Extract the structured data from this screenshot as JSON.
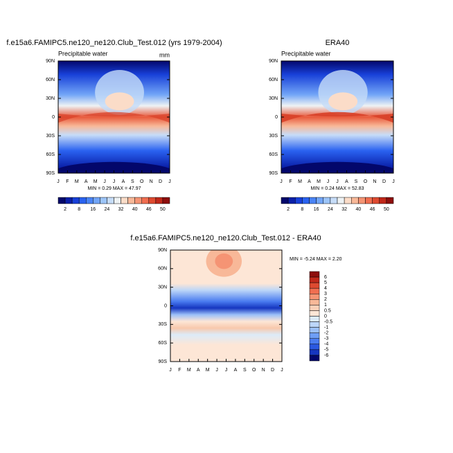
{
  "chart_data": [
    {
      "type": "contour",
      "title": "f.e15a6.FAMIPC5.ne120_ne120.Club_Test.012 (yrs 1979-2004)",
      "subtitle": "Precipitable water",
      "units": "mm",
      "categories": [
        "J",
        "F",
        "M",
        "A",
        "M",
        "J",
        "J",
        "A",
        "S",
        "O",
        "N",
        "D",
        "J"
      ],
      "ylim": [
        -90,
        90
      ],
      "yticks": [
        {
          "value": 90,
          "label": "90N"
        },
        {
          "value": 60,
          "label": "60N"
        },
        {
          "value": 30,
          "label": "30N"
        },
        0,
        {
          "value": -30,
          "label": "30S"
        },
        {
          "value": -60,
          "label": "60S"
        },
        {
          "value": -90,
          "label": "90S"
        }
      ],
      "stats": "MIN =  0.29 MAX =  47.97",
      "colorbar": {
        "orientation": "horizontal",
        "labels": [
          2,
          8,
          16,
          24,
          32,
          40,
          46,
          50
        ],
        "colors": [
          "#03076b",
          "#0a1fa8",
          "#1840d8",
          "#2a62f0",
          "#4a84f5",
          "#72a5f7",
          "#9cc4f8",
          "#c6dcf8",
          "#eef2f4",
          "#fbdcc8",
          "#f8b898",
          "#f59474",
          "#f06e50",
          "#de4a30",
          "#c0281a",
          "#8e0e0c"
        ]
      }
    },
    {
      "type": "contour",
      "title": "ERA40",
      "subtitle": "Precipitable water",
      "categories": [
        "J",
        "F",
        "M",
        "A",
        "M",
        "J",
        "J",
        "A",
        "S",
        "O",
        "N",
        "D",
        "J"
      ],
      "ylim": [
        -90,
        90
      ],
      "yticks": [
        {
          "value": 90,
          "label": "90N"
        },
        {
          "value": 60,
          "label": "60N"
        },
        {
          "value": 30,
          "label": "30N"
        },
        0,
        {
          "value": -30,
          "label": "30S"
        },
        {
          "value": -60,
          "label": "60S"
        },
        {
          "value": -90,
          "label": "90S"
        }
      ],
      "stats": "MIN =  0.24 MAX =  52.83",
      "colorbar": {
        "orientation": "horizontal",
        "labels": [
          2,
          8,
          16,
          24,
          32,
          40,
          46,
          50
        ],
        "colors": [
          "#03076b",
          "#0a1fa8",
          "#1840d8",
          "#2a62f0",
          "#4a84f5",
          "#72a5f7",
          "#9cc4f8",
          "#c6dcf8",
          "#eef2f4",
          "#fbdcc8",
          "#f8b898",
          "#f59474",
          "#f06e50",
          "#de4a30",
          "#c0281a",
          "#8e0e0c"
        ]
      }
    },
    {
      "type": "contour",
      "title": "f.e15a6.FAMIPC5.ne120_ne120.Club_Test.012 - ERA40",
      "categories": [
        "J",
        "F",
        "M",
        "A",
        "M",
        "J",
        "J",
        "A",
        "S",
        "O",
        "N",
        "D",
        "J"
      ],
      "ylim": [
        -90,
        90
      ],
      "yticks": [
        {
          "value": 90,
          "label": "90N"
        },
        {
          "value": 60,
          "label": "60N"
        },
        {
          "value": 30,
          "label": "30N"
        },
        0,
        {
          "value": -30,
          "label": "30S"
        },
        {
          "value": -60,
          "label": "60S"
        },
        {
          "value": -90,
          "label": "90S"
        }
      ],
      "stats": "MIN = -5.24 MAX =  2.20",
      "colorbar": {
        "orientation": "vertical",
        "labels": [
          6,
          5,
          4,
          3,
          2,
          1,
          0.5,
          0,
          -0.5,
          -1,
          -2,
          -3,
          -4,
          -5,
          -6
        ],
        "colors": [
          "#8e0e0c",
          "#c0281a",
          "#de4a30",
          "#f06e50",
          "#f59474",
          "#f8b898",
          "#fbd0b8",
          "#fde6d6",
          "#dcebf8",
          "#bcd6f8",
          "#9cc0f8",
          "#6e9ef5",
          "#4a7cf0",
          "#2a58e0",
          "#1636c0",
          "#03076b"
        ]
      }
    }
  ]
}
